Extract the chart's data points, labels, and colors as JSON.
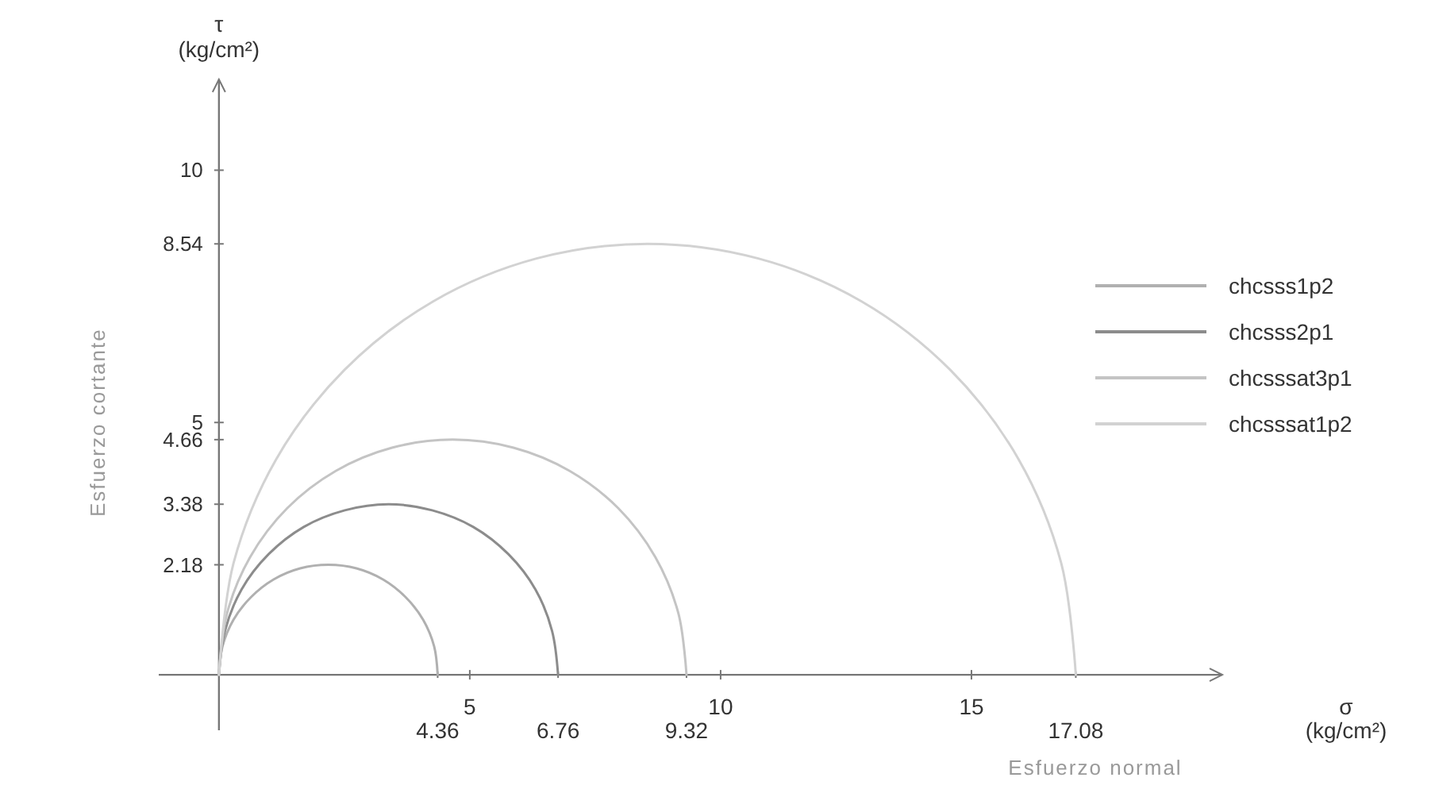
{
  "chart_data": {
    "type": "line",
    "xlabel": "Esfuerzo normal",
    "ylabel": "Esfuerzo cortante",
    "annotations": [
      "τ (kg/cm²)",
      "σ (kg/cm²)",
      {
        "text": "4.36",
        "x": 4.36,
        "y": 0
      },
      {
        "text": "6.76",
        "x": 6.76,
        "y": 0
      },
      {
        "text": "9.32",
        "x": 9.32,
        "y": 0
      },
      {
        "text": "17.08",
        "x": 17.08,
        "y": 0
      }
    ],
    "xlim": [
      -1.2,
      20
    ],
    "ylim": [
      -1.1,
      11.8
    ],
    "xticks": [
      5,
      10,
      15
    ],
    "yticks": [
      2.18,
      3.38,
      4.66,
      5,
      8.54,
      10
    ],
    "grid": false,
    "legend": "right",
    "marker": "none",
    "line_style": "solid",
    "series": [
      {
        "name": "chcsss1p2",
        "color": "#b0b0b0",
        "x": [
          0,
          0.07,
          0.29,
          0.64,
          1.09,
          1.62,
          2.18,
          2.74,
          3.27,
          3.72,
          4.07,
          4.29,
          4.36
        ],
        "values": [
          0,
          0.56,
          1.09,
          1.54,
          1.89,
          2.11,
          2.18,
          2.11,
          1.89,
          1.54,
          1.09,
          0.56,
          0
        ]
      },
      {
        "name": "chcsss2p1",
        "color": "#8c8c8c",
        "x": [
          0,
          0.12,
          0.45,
          0.99,
          1.69,
          2.51,
          3.38,
          4.25,
          5.07,
          5.77,
          6.31,
          6.64,
          6.76
        ],
        "values": [
          0,
          0.87,
          1.69,
          2.39,
          2.93,
          3.26,
          3.38,
          3.26,
          2.93,
          2.39,
          1.69,
          0.87,
          0
        ]
      },
      {
        "name": "chcsssat3p1",
        "color": "#c4c4c4",
        "x": [
          0,
          0.16,
          0.62,
          1.36,
          2.33,
          3.45,
          4.66,
          5.87,
          6.99,
          7.96,
          8.7,
          9.16,
          9.32
        ],
        "values": [
          0,
          1.21,
          2.33,
          3.3,
          4.04,
          4.5,
          4.66,
          4.5,
          4.04,
          3.3,
          2.33,
          1.21,
          0
        ]
      },
      {
        "name": "chcsssat1p2",
        "color": "#d2d2d2",
        "x": [
          0,
          0.29,
          1.14,
          2.5,
          4.27,
          6.33,
          8.54,
          10.75,
          12.81,
          14.58,
          15.94,
          16.79,
          17.08
        ],
        "values": [
          0,
          2.21,
          4.27,
          6.04,
          7.4,
          8.25,
          8.54,
          8.25,
          7.4,
          6.04,
          4.27,
          2.21,
          0
        ]
      }
    ]
  }
}
